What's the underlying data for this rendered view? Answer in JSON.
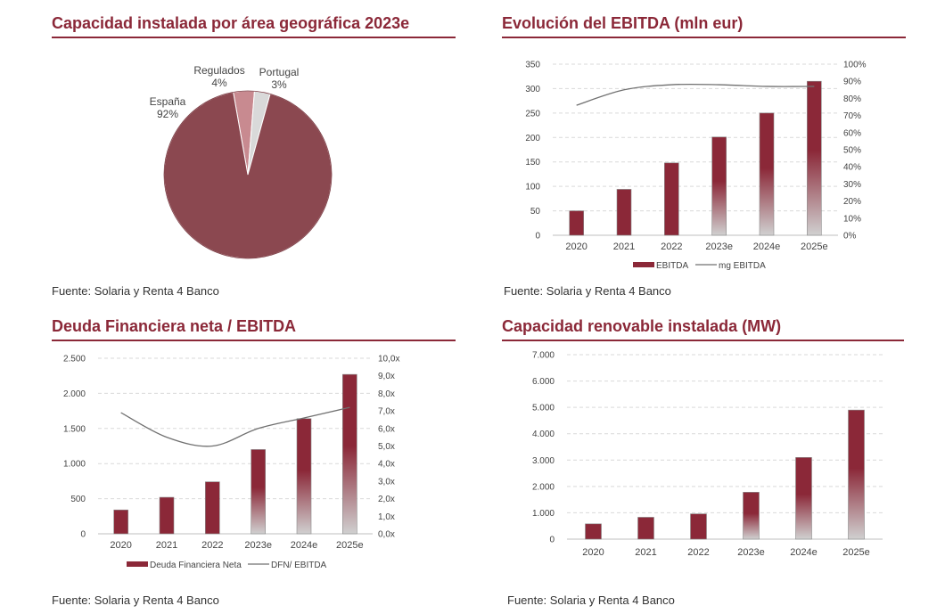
{
  "chart_data": [
    {
      "type": "pie",
      "title": "Capacidad instalada por área geográfica 2023e",
      "source": "Fuente: Solaria y Renta 4 Banco",
      "slices": [
        {
          "label": "España",
          "pct_label": "92%",
          "value": 92,
          "color": "#8b4850"
        },
        {
          "label": "Regulados",
          "pct_label": "4%",
          "value": 4,
          "color": "#c88a90"
        },
        {
          "label": "Portugal",
          "pct_label": "3%",
          "value": 3,
          "color": "#d9d9d9"
        }
      ]
    },
    {
      "type": "bar",
      "title": "Evolución del EBITDA (mln eur)",
      "source": "Fuente: Solaria y Renta 4 Banco",
      "categories": [
        "2020",
        "2021",
        "2022",
        "2023e",
        "2024e",
        "2025e"
      ],
      "series": [
        {
          "name": "EBITDA",
          "kind": "bar",
          "axis": "left",
          "values": [
            50,
            94,
            148,
            201,
            250,
            315
          ]
        },
        {
          "name": "mg EBITDA",
          "kind": "line",
          "axis": "right",
          "values": [
            76,
            85,
            88,
            88,
            87,
            87
          ]
        }
      ],
      "estimate_from_index": 3,
      "ylim": [
        0,
        350
      ],
      "yticks": [
        0,
        50,
        100,
        150,
        200,
        250,
        300,
        350
      ],
      "ytick_labels": [
        "0",
        "50",
        "100",
        "150",
        "200",
        "250",
        "300",
        "350"
      ],
      "y2lim": [
        0,
        100
      ],
      "y2ticks": [
        0,
        10,
        20,
        30,
        40,
        50,
        60,
        70,
        80,
        90,
        100
      ],
      "y2tick_labels": [
        "0%",
        "10%",
        "20%",
        "30%",
        "40%",
        "50%",
        "60%",
        "70%",
        "80%",
        "90%",
        "100%"
      ]
    },
    {
      "type": "bar",
      "title": "Deuda Financiera neta / EBITDA",
      "source": "Fuente: Solaria y Renta 4 Banco",
      "categories": [
        "2020",
        "2021",
        "2022",
        "2023e",
        "2024e",
        "2025e"
      ],
      "series": [
        {
          "name": "Deuda Financiera Neta",
          "kind": "bar",
          "axis": "left",
          "values": [
            340,
            520,
            740,
            1200,
            1640,
            2270
          ]
        },
        {
          "name": "DFN/ EBITDA",
          "kind": "line",
          "axis": "right",
          "values": [
            6.9,
            5.5,
            5.0,
            6.0,
            6.6,
            7.2
          ]
        }
      ],
      "estimate_from_index": 3,
      "ylim": [
        0,
        2500
      ],
      "yticks": [
        0,
        500,
        1000,
        1500,
        2000,
        2500
      ],
      "ytick_labels": [
        "0",
        "500",
        "1.000",
        "1.500",
        "2.000",
        "2.500"
      ],
      "y2lim": [
        0,
        10
      ],
      "y2ticks": [
        0,
        1,
        2,
        3,
        4,
        5,
        6,
        7,
        8,
        9,
        10
      ],
      "y2tick_labels": [
        "0,0x",
        "1,0x",
        "2,0x",
        "3,0x",
        "4,0x",
        "5,0x",
        "6,0x",
        "7,0x",
        "8,0x",
        "9,0x",
        "10,0x"
      ]
    },
    {
      "type": "bar",
      "title": "Capacidad renovable instalada (MW)",
      "source": "Fuente: Solaria y Renta 4 Banco",
      "categories": [
        "2020",
        "2021",
        "2022",
        "2023e",
        "2024e",
        "2025e"
      ],
      "series": [
        {
          "name": "MW",
          "kind": "bar",
          "axis": "left",
          "values": [
            580,
            830,
            960,
            1780,
            3100,
            4900
          ]
        }
      ],
      "estimate_from_index": 3,
      "ylim": [
        0,
        7000
      ],
      "yticks": [
        0,
        1000,
        2000,
        3000,
        4000,
        5000,
        6000,
        7000
      ],
      "ytick_labels": [
        "0",
        "1.000",
        "2.000",
        "3.000",
        "4.000",
        "5.000",
        "6.000",
        "7.000"
      ]
    }
  ],
  "colors": {
    "accent": "#8b2838",
    "bar": "#8b2838",
    "bar_light": "#d0d0d0",
    "line": "#707070",
    "grid": "#d9d9d9"
  }
}
